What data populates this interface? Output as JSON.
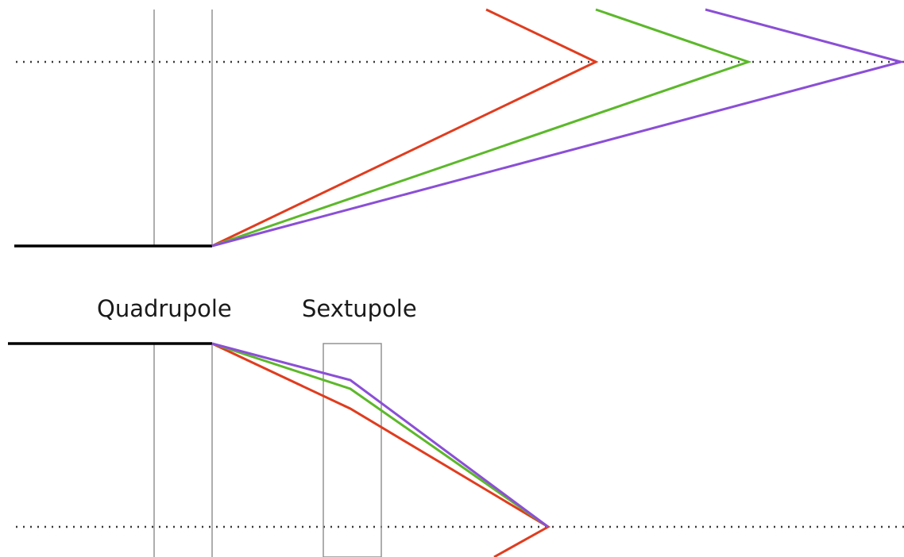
{
  "labels": {
    "quadrupole": "Quadrupole",
    "sextupole": "Sextupole"
  },
  "colors": {
    "beam": "#000000",
    "element_outline": "#8c8c8c",
    "focal_line": "#3a3a3a",
    "ray_red": "#e03c1e",
    "ray_green": "#5cb82a",
    "ray_purple": "#8b4fd6"
  },
  "rays": [
    {
      "color_key": "ray_red",
      "panel": "top"
    },
    {
      "color_key": "ray_green",
      "panel": "top"
    },
    {
      "color_key": "ray_purple",
      "panel": "top"
    },
    {
      "color_key": "ray_red",
      "panel": "bottom"
    },
    {
      "color_key": "ray_green",
      "panel": "bottom"
    },
    {
      "color_key": "ray_purple",
      "panel": "bottom"
    }
  ]
}
